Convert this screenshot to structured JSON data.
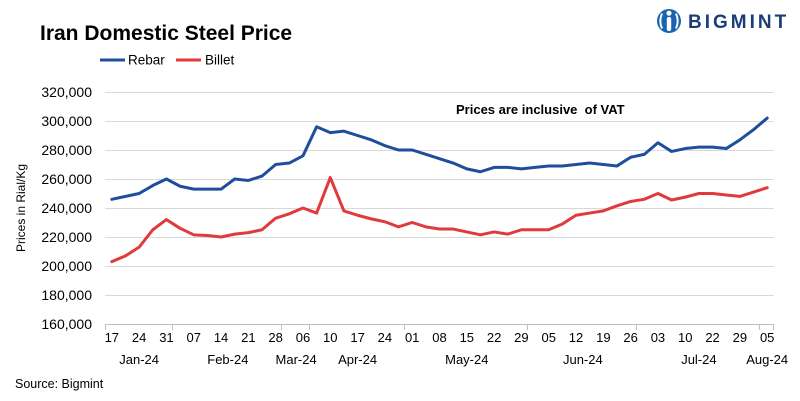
{
  "page": {
    "source": "Source: Bigmint"
  },
  "brand": {
    "name": "BIGMINT",
    "icon": "bigmint-logo-icon",
    "icon_color": "#1a63ae",
    "text_color": "#1c3e78"
  },
  "chart_data": {
    "type": "line",
    "title": "Iran Domestic Steel Price",
    "ylabel": "Prices in Rial/Kg",
    "ylim": [
      160000,
      320000
    ],
    "y_tick_labels": [
      "160,000",
      "180,000",
      "200,000",
      "220,000",
      "240,000",
      "260,000",
      "280,000",
      "300,000",
      "320,000"
    ],
    "grid": "horizontal",
    "legend": "top-left",
    "annotation": "Prices are inclusive  of VAT",
    "categories": [
      {
        "day": "17",
        "month": "Jan-24"
      },
      {
        "day": "",
        "month": "Jan-24"
      },
      {
        "day": "24",
        "month": "Jan-24"
      },
      {
        "day": "",
        "month": "Jan-24"
      },
      {
        "day": "31",
        "month": "Jan-24"
      },
      {
        "day": "",
        "month": "Feb-24"
      },
      {
        "day": "07",
        "month": "Feb-24"
      },
      {
        "day": "",
        "month": "Feb-24"
      },
      {
        "day": "14",
        "month": "Feb-24"
      },
      {
        "day": "",
        "month": "Feb-24"
      },
      {
        "day": "21",
        "month": "Feb-24"
      },
      {
        "day": "",
        "month": "Feb-24"
      },
      {
        "day": "28",
        "month": "Feb-24"
      },
      {
        "day": "",
        "month": "Mar-24"
      },
      {
        "day": "06",
        "month": "Mar-24"
      },
      {
        "day": "",
        "month": "Apr-24"
      },
      {
        "day": "10",
        "month": "Apr-24"
      },
      {
        "day": "",
        "month": "Apr-24"
      },
      {
        "day": "17",
        "month": "Apr-24"
      },
      {
        "day": "",
        "month": "Apr-24"
      },
      {
        "day": "24",
        "month": "Apr-24"
      },
      {
        "day": "",
        "month": "Apr-24"
      },
      {
        "day": "01",
        "month": "May-24"
      },
      {
        "day": "",
        "month": "May-24"
      },
      {
        "day": "08",
        "month": "May-24"
      },
      {
        "day": "",
        "month": "May-24"
      },
      {
        "day": "15",
        "month": "May-24"
      },
      {
        "day": "",
        "month": "May-24"
      },
      {
        "day": "22",
        "month": "May-24"
      },
      {
        "day": "",
        "month": "May-24"
      },
      {
        "day": "29",
        "month": "May-24"
      },
      {
        "day": "",
        "month": "Jun-24"
      },
      {
        "day": "05",
        "month": "Jun-24"
      },
      {
        "day": "",
        "month": "Jun-24"
      },
      {
        "day": "12",
        "month": "Jun-24"
      },
      {
        "day": "",
        "month": "Jun-24"
      },
      {
        "day": "19",
        "month": "Jun-24"
      },
      {
        "day": "",
        "month": "Jun-24"
      },
      {
        "day": "26",
        "month": "Jun-24"
      },
      {
        "day": "",
        "month": "Jul-24"
      },
      {
        "day": "03",
        "month": "Jul-24"
      },
      {
        "day": "",
        "month": "Jul-24"
      },
      {
        "day": "10",
        "month": "Jul-24"
      },
      {
        "day": "",
        "month": "Jul-24"
      },
      {
        "day": "22",
        "month": "Jul-24"
      },
      {
        "day": "",
        "month": "Jul-24"
      },
      {
        "day": "29",
        "month": "Jul-24"
      },
      {
        "day": "",
        "month": "Jul-24"
      },
      {
        "day": "05",
        "month": "Aug-24"
      }
    ],
    "series": [
      {
        "name": "Rebar",
        "color": "#1f4e9c",
        "values": [
          246000,
          248000,
          250000,
          255500,
          260000,
          255000,
          253000,
          253000,
          253000,
          260000,
          259000,
          262000,
          270000,
          271000,
          276000,
          296000,
          292000,
          293000,
          290000,
          287000,
          283000,
          280000,
          280000,
          277000,
          274000,
          271000,
          267000,
          265000,
          268000,
          268000,
          267000,
          268000,
          269000,
          269000,
          270000,
          271000,
          270000,
          269000,
          275000,
          277000,
          285000,
          279000,
          281000,
          282000,
          282000,
          281000,
          287000,
          294000,
          302000
        ]
      },
      {
        "name": "Billet",
        "color": "#e03a3c",
        "values": [
          203000,
          207000,
          213000,
          225000,
          232000,
          226000,
          221500,
          221000,
          220000,
          222000,
          223000,
          225000,
          233000,
          236000,
          240000,
          236500,
          261000,
          238000,
          235000,
          232500,
          230500,
          227000,
          230000,
          227000,
          225500,
          225500,
          223500,
          221500,
          223500,
          222000,
          225000,
          225000,
          225000,
          229000,
          235000,
          236500,
          238000,
          241500,
          244500,
          246000,
          250000,
          245500,
          247500,
          250000,
          250000,
          249000,
          248000,
          251000,
          254000
        ]
      }
    ]
  }
}
